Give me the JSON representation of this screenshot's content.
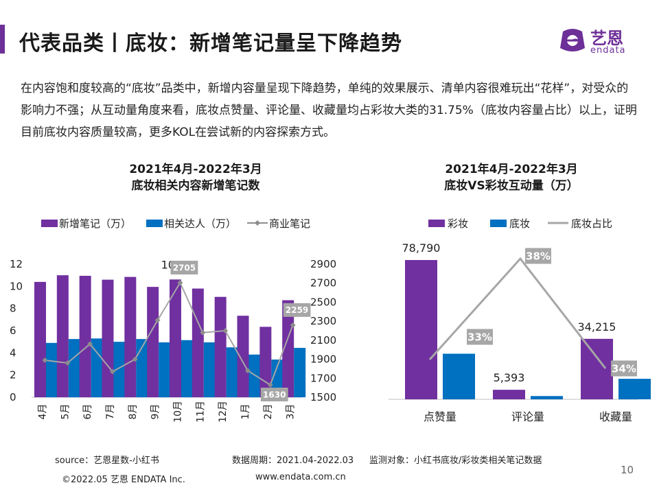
{
  "page": {
    "title": "代表品类丨底妆：新增笔记量呈下降趋势",
    "intro": "在内容饱和度较高的“底妆”品类中，新增内容量呈现下降趋势，单纯的效果展示、清单内容很难玩出“花样”，对受众的影响力不强；从互动量角度来看，底妆点赞量、评论量、收藏量均占彩妆大类的31.75%（底妆内容量占比）以上，证明目前底妆内容质量较高，更多KOL在尝试新的内容探索方式。",
    "page_number": "10"
  },
  "logo": {
    "cn": "艺恩",
    "en": "endata"
  },
  "colors": {
    "purple": "#7030a0",
    "blue": "#0070c0",
    "gray": "#a6a6a6",
    "accent": "#6d2f98"
  },
  "footer": {
    "source": "source：艺恩星数-小红书",
    "period": "数据周期：2021.04-2022.03",
    "subject": "监测对象：小红书底妆/彩妆类相关笔记数据",
    "copyright": "©2022.05 艺恩 ENDATA Inc.",
    "website": "www.endata.com.cn"
  },
  "chart_data": [
    {
      "type": "bar",
      "title": "2021年4月-2022年3月",
      "subtitle": "底妆相关内容新增笔记数",
      "categories": [
        "4月",
        "5月",
        "6月",
        "7月",
        "8月",
        "9月",
        "10月",
        "11月",
        "12月",
        "1月",
        "2月",
        "3月"
      ],
      "series": [
        {
          "name": "新增笔记（万）",
          "axis": "left",
          "kind": "bar",
          "color": "#7030a0",
          "values": [
            10.4,
            11.0,
            10.95,
            10.6,
            10.85,
            9.95,
            10.62,
            9.8,
            9.05,
            7.35,
            6.35,
            8.75
          ]
        },
        {
          "name": "相关达人（万）",
          "axis": "left",
          "kind": "bar",
          "color": "#0070c0",
          "values": [
            4.9,
            5.25,
            5.3,
            5.0,
            5.25,
            4.95,
            5.15,
            4.95,
            4.5,
            3.85,
            3.4,
            4.45
          ]
        },
        {
          "name": "商业笔记",
          "axis": "right",
          "kind": "line",
          "color": "#a6a6a6",
          "values": [
            1890,
            1860,
            2060,
            1770,
            1900,
            2310,
            2705,
            2180,
            2200,
            1780,
            1630,
            2259
          ]
        }
      ],
      "ylim_left": [
        0,
        12
      ],
      "yticks_left": [
        0,
        2,
        4,
        6,
        8,
        10,
        12
      ],
      "ylim_right": [
        1500,
        2900
      ],
      "yticks_right": [
        1500,
        1700,
        1900,
        2100,
        2300,
        2500,
        2700,
        2900
      ],
      "data_labels": [
        {
          "series": 0,
          "index": 6,
          "text": "10.62"
        },
        {
          "series": 2,
          "index": 6,
          "text": "2705"
        },
        {
          "series": 2,
          "index": 10,
          "text": "1630"
        },
        {
          "series": 2,
          "index": 11,
          "text": "2259"
        }
      ],
      "legend": "top",
      "grid": false
    },
    {
      "type": "bar",
      "title": "2021年4月-2022年3月",
      "subtitle": "底妆VS彩妆互动量（万）",
      "categories": [
        "点赞量",
        "评论量",
        "收藏量"
      ],
      "series": [
        {
          "name": "彩妆",
          "kind": "bar",
          "color": "#7030a0",
          "values": [
            78790,
            5393,
            34215
          ]
        },
        {
          "name": "底妆",
          "kind": "bar",
          "color": "#0070c0",
          "values": [
            25800,
            1850,
            11600
          ]
        },
        {
          "name": "底妆占比",
          "kind": "line",
          "color": "#a6a6a6",
          "values": [
            33,
            38,
            34
          ]
        }
      ],
      "data_labels": [
        {
          "series": 0,
          "index": 0,
          "text": "78,790"
        },
        {
          "series": 0,
          "index": 1,
          "text": "5,393"
        },
        {
          "series": 0,
          "index": 2,
          "text": "34,215"
        },
        {
          "series": 2,
          "index": 0,
          "text": "33%"
        },
        {
          "series": 2,
          "index": 1,
          "text": "38%"
        },
        {
          "series": 2,
          "index": 2,
          "text": "34%"
        }
      ],
      "legend": "top",
      "grid": false
    }
  ]
}
